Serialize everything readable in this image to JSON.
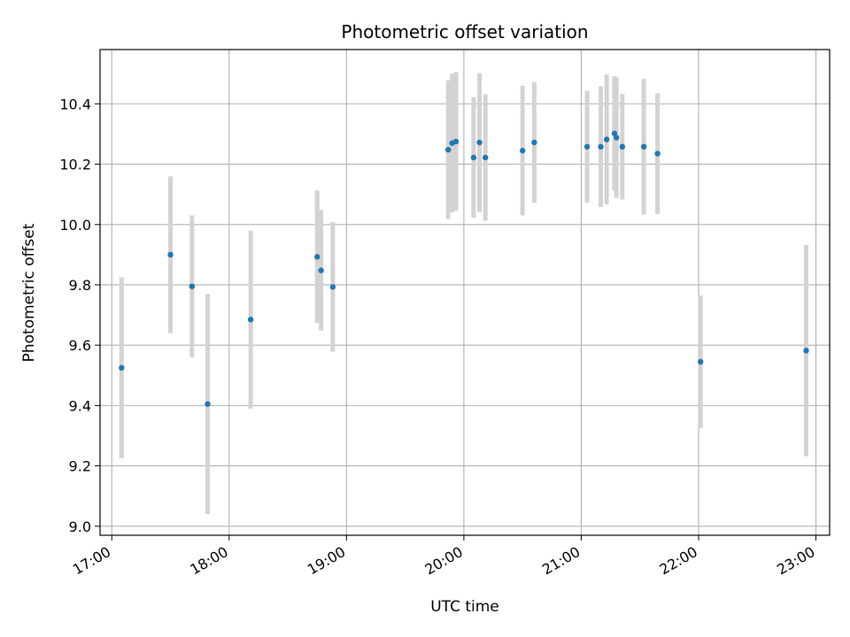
{
  "chart_data": {
    "type": "scatter",
    "title": "Photometric offset variation",
    "xlabel": "UTC time",
    "ylabel": "Photometric offset",
    "xlim": [
      "16:54",
      "23:07"
    ],
    "ylim": [
      8.97,
      10.58
    ],
    "x_ticks": [
      "17:00",
      "18:00",
      "19:00",
      "20:00",
      "21:00",
      "22:00",
      "23:00"
    ],
    "y_ticks": [
      "9.0",
      "9.2",
      "9.4",
      "9.6",
      "9.8",
      "10.0",
      "10.2",
      "10.4"
    ],
    "grid": true,
    "colors": {
      "points": "#1f77b4",
      "error_bars": "#d3d3d3",
      "grid": "#b0b0b0"
    },
    "points": [
      {
        "x": "17:05",
        "y": 9.525,
        "err": 0.3
      },
      {
        "x": "17:30",
        "y": 9.9,
        "err": 0.26
      },
      {
        "x": "17:41",
        "y": 9.795,
        "err": 0.235
      },
      {
        "x": "17:49",
        "y": 9.405,
        "err": 0.365
      },
      {
        "x": "18:11",
        "y": 9.685,
        "err": 0.295
      },
      {
        "x": "18:45",
        "y": 9.893,
        "err": 0.22
      },
      {
        "x": "18:47",
        "y": 9.848,
        "err": 0.2
      },
      {
        "x": "18:53",
        "y": 9.793,
        "err": 0.215
      },
      {
        "x": "19:52",
        "y": 10.248,
        "err": 0.23
      },
      {
        "x": "19:54",
        "y": 10.27,
        "err": 0.23
      },
      {
        "x": "19:56",
        "y": 10.275,
        "err": 0.23
      },
      {
        "x": "20:05",
        "y": 10.222,
        "err": 0.2
      },
      {
        "x": "20:08",
        "y": 10.272,
        "err": 0.23
      },
      {
        "x": "20:11",
        "y": 10.222,
        "err": 0.21
      },
      {
        "x": "20:30",
        "y": 10.245,
        "err": 0.215
      },
      {
        "x": "20:36",
        "y": 10.272,
        "err": 0.2
      },
      {
        "x": "21:03",
        "y": 10.258,
        "err": 0.185
      },
      {
        "x": "21:10",
        "y": 10.258,
        "err": 0.2
      },
      {
        "x": "21:13",
        "y": 10.282,
        "err": 0.215
      },
      {
        "x": "21:17",
        "y": 10.302,
        "err": 0.19
      },
      {
        "x": "21:18",
        "y": 10.288,
        "err": 0.2
      },
      {
        "x": "21:21",
        "y": 10.258,
        "err": 0.175
      },
      {
        "x": "21:32",
        "y": 10.258,
        "err": 0.225
      },
      {
        "x": "21:39",
        "y": 10.235,
        "err": 0.2
      },
      {
        "x": "22:01",
        "y": 9.545,
        "err": 0.22
      },
      {
        "x": "22:55",
        "y": 9.582,
        "err": 0.35
      }
    ]
  }
}
